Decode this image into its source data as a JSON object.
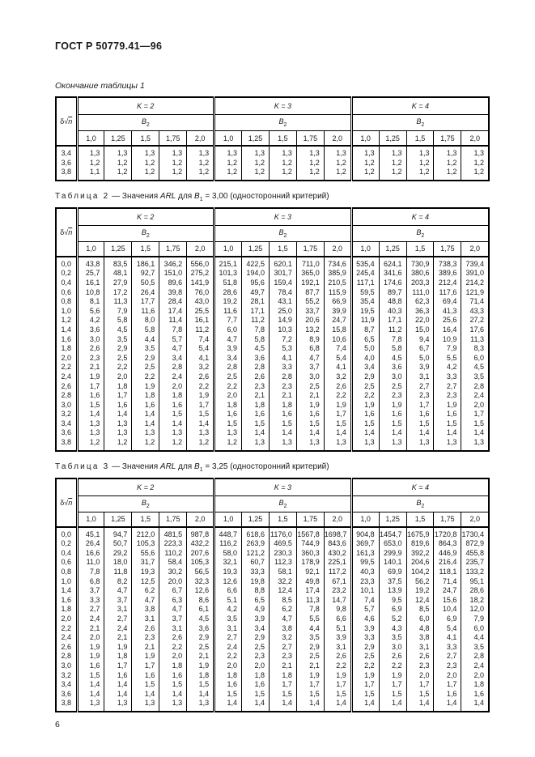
{
  "doc": {
    "header": "ГОСТ Р 50779.41—96",
    "page_number": "6"
  },
  "table_header": {
    "symbol": {
      "delta": "δ",
      "radical": "√",
      "var": "n"
    },
    "groups": [
      "K = 2",
      "K = 3",
      "K = 4"
    ],
    "group_sub_base": "B",
    "group_sub_sub": "2",
    "columns": [
      "1,0",
      "1,25",
      "1,5",
      "1,75",
      "2,0"
    ]
  },
  "tables": [
    {
      "caption_segments": [
        {
          "t": "Окончание таблицы 1",
          "cls": "ital"
        }
      ],
      "rows": [
        {
          "label": "3,4",
          "values": [
            "1,3",
            "1,3",
            "1,3",
            "1,3",
            "1,3",
            "1,3",
            "1,3",
            "1,3",
            "1,3",
            "1,3",
            "1,3",
            "1,3",
            "1,3",
            "1,3",
            "1,3"
          ]
        },
        {
          "label": "3,6",
          "values": [
            "1,2",
            "1,2",
            "1,2",
            "1,2",
            "1,2",
            "1,2",
            "1,2",
            "1,2",
            "1,2",
            "1,2",
            "1,2",
            "1,2",
            "1,2",
            "1,2",
            "1,2"
          ]
        },
        {
          "label": "3,8",
          "values": [
            "1,1",
            "1,2",
            "1,2",
            "1,2",
            "1,2",
            "1,2",
            "1,2",
            "1,2",
            "1,2",
            "1,2",
            "1,2",
            "1,2",
            "1,2",
            "1,2",
            "1,2"
          ]
        }
      ]
    },
    {
      "caption_segments": [
        {
          "t": "Таблица 2",
          "cls": "spaced"
        },
        {
          "t": " — Значения ",
          "cls": ""
        },
        {
          "t": "ARL",
          "cls": "ital"
        },
        {
          "t": " для ",
          "cls": ""
        },
        {
          "t": "B",
          "cls": "ital"
        },
        {
          "t": "1",
          "cls": "subscript"
        },
        {
          "t": " = 3,00 (односторонний критерий)",
          "cls": ""
        }
      ],
      "rows": [
        {
          "label": "0,0",
          "values": [
            "43,8",
            "83,5",
            "186,1",
            "346,2",
            "556,0",
            "215,1",
            "422,5",
            "620,1",
            "711,0",
            "734,6",
            "535,4",
            "624,1",
            "730,9",
            "738,3",
            "739,4"
          ]
        },
        {
          "label": "0,2",
          "values": [
            "25,7",
            "48,1",
            "92,7",
            "151,0",
            "275,2",
            "101,3",
            "194,0",
            "301,7",
            "365,0",
            "385,9",
            "245,4",
            "341,6",
            "380,6",
            "389,6",
            "391,0"
          ]
        },
        {
          "label": "0,4",
          "values": [
            "16,1",
            "27,9",
            "50,5",
            "89,6",
            "141,9",
            "51,8",
            "95,6",
            "159,4",
            "192,1",
            "210,5",
            "117,1",
            "174,6",
            "203,3",
            "212,4",
            "214,2"
          ]
        },
        {
          "label": "0,6",
          "values": [
            "10,8",
            "17,2",
            "26,4",
            "39,8",
            "76,0",
            "28,6",
            "49,7",
            "78,4",
            "87,7",
            "115,9",
            "59,5",
            "89,7",
            "111,0",
            "117,6",
            "121,9"
          ]
        },
        {
          "label": "0,8",
          "values": [
            "8,1",
            "11,3",
            "17,7",
            "28,4",
            "43,0",
            "19,2",
            "28,1",
            "43,1",
            "55,2",
            "66,9",
            "35,4",
            "48,8",
            "62,3",
            "69,4",
            "71,4"
          ]
        },
        {
          "label": "1,0",
          "values": [
            "5,6",
            "7,9",
            "11,6",
            "17,4",
            "25,5",
            "11,6",
            "17,1",
            "25,0",
            "33,7",
            "39,9",
            "19,5",
            "40,3",
            "36,3",
            "41,3",
            "43,3"
          ]
        },
        {
          "label": "1,2",
          "values": [
            "4,2",
            "5,8",
            "8,0",
            "11,4",
            "16,1",
            "7,7",
            "11,2",
            "14,9",
            "20,6",
            "24,7",
            "11,9",
            "17,1",
            "22,0",
            "25,6",
            "27,2"
          ]
        },
        {
          "label": "1,4",
          "values": [
            "3,6",
            "4,5",
            "5,8",
            "7,8",
            "11,2",
            "6,0",
            "7,8",
            "10,3",
            "13,2",
            "15,8",
            "8,7",
            "11,2",
            "15,0",
            "16,4",
            "17,6"
          ]
        },
        {
          "label": "1,6",
          "values": [
            "3,0",
            "3,5",
            "4,4",
            "5,7",
            "7,4",
            "4,7",
            "5,8",
            "7,2",
            "8,9",
            "10,6",
            "6,5",
            "7,8",
            "9,4",
            "10,9",
            "11,3"
          ]
        },
        {
          "label": "1,8",
          "values": [
            "2,6",
            "2,9",
            "3,5",
            "4,7",
            "5,4",
            "3,9",
            "4,5",
            "5,3",
            "6,8",
            "7,4",
            "5,0",
            "5,8",
            "6,7",
            "7,9",
            "8,3"
          ]
        },
        {
          "label": "2,0",
          "values": [
            "2,3",
            "2,5",
            "2,9",
            "3,4",
            "4,1",
            "3,4",
            "3,6",
            "4,1",
            "4,7",
            "5,4",
            "4,0",
            "4,5",
            "5,0",
            "5,5",
            "6,0"
          ]
        },
        {
          "label": "2,2",
          "values": [
            "2,1",
            "2,2",
            "2,5",
            "2,8",
            "3,2",
            "2,8",
            "2,8",
            "3,3",
            "3,7",
            "4,1",
            "3,4",
            "3,6",
            "3,9",
            "4,2",
            "4,5"
          ]
        },
        {
          "label": "2,4",
          "values": [
            "1,9",
            "2,0",
            "2,2",
            "2,4",
            "2,6",
            "2,5",
            "2,6",
            "2,8",
            "3,0",
            "3,2",
            "2,9",
            "3,0",
            "3,1",
            "3,3",
            "3,5"
          ]
        },
        {
          "label": "2,6",
          "values": [
            "1,7",
            "1,8",
            "1,9",
            "2,0",
            "2,2",
            "2,2",
            "2,3",
            "2,3",
            "2,5",
            "2,6",
            "2,5",
            "2,5",
            "2,7",
            "2,7",
            "2,8"
          ]
        },
        {
          "label": "2,8",
          "values": [
            "1,6",
            "1,7",
            "1,8",
            "1,8",
            "1,9",
            "2,0",
            "2,1",
            "2,1",
            "2,1",
            "2,2",
            "2,2",
            "2,3",
            "2,3",
            "2,3",
            "2,4"
          ]
        },
        {
          "label": "3,0",
          "values": [
            "1,5",
            "1,6",
            "1,6",
            "1,6",
            "1,7",
            "1,8",
            "1,8",
            "1,8",
            "1,9",
            "1,9",
            "1,9",
            "1,9",
            "1,7",
            "1,9",
            "2,0"
          ]
        },
        {
          "label": "3,2",
          "values": [
            "1,4",
            "1,4",
            "1,4",
            "1,5",
            "1,5",
            "1,6",
            "1,6",
            "1,6",
            "1,6",
            "1,7",
            "1,6",
            "1,6",
            "1,6",
            "1,6",
            "1,7"
          ]
        },
        {
          "label": "3,4",
          "values": [
            "1,3",
            "1,3",
            "1,4",
            "1,4",
            "1,4",
            "1,5",
            "1,5",
            "1,5",
            "1,5",
            "1,5",
            "1,5",
            "1,5",
            "1,5",
            "1,5",
            "1,5"
          ]
        },
        {
          "label": "3,6",
          "values": [
            "1,3",
            "1,3",
            "1,3",
            "1,3",
            "1,3",
            "1,3",
            "1,4",
            "1,4",
            "1,4",
            "1,4",
            "1,4",
            "1,4",
            "1,4",
            "1,4",
            "1,4"
          ]
        },
        {
          "label": "3,8",
          "values": [
            "1,2",
            "1,2",
            "1,2",
            "1,2",
            "1,2",
            "1,2",
            "1,3",
            "1,3",
            "1,3",
            "1,3",
            "1,3",
            "1,3",
            "1,3",
            "1,3",
            "1,3"
          ]
        }
      ]
    },
    {
      "caption_segments": [
        {
          "t": "Таблица 3",
          "cls": "spaced"
        },
        {
          "t": " — Значения ",
          "cls": ""
        },
        {
          "t": "ARL",
          "cls": "ital"
        },
        {
          "t": " для ",
          "cls": ""
        },
        {
          "t": "B",
          "cls": "ital"
        },
        {
          "t": "1",
          "cls": "subscript"
        },
        {
          "t": " = 3,25 (односторонний критерий)",
          "cls": ""
        }
      ],
      "rows": [
        {
          "label": "0,0",
          "values": [
            "45,1",
            "94,7",
            "212,0",
            "481,5",
            "987,8",
            "448,7",
            "618,6",
            "1176,0",
            "1567,8",
            "1698,7",
            "904,8",
            "1454,7",
            "1675,9",
            "1720,8",
            "1730,4"
          ]
        },
        {
          "label": "0,2",
          "values": [
            "26,4",
            "50,7",
            "105,3",
            "223,3",
            "432,2",
            "116,2",
            "263,9",
            "469,5",
            "744,9",
            "843,6",
            "369,7",
            "653,0",
            "819,6",
            "864,3",
            "872,9"
          ]
        },
        {
          "label": "0,4",
          "values": [
            "16,6",
            "29,2",
            "55,6",
            "110,2",
            "207,6",
            "58,0",
            "121,2",
            "230,3",
            "360,3",
            "430,2",
            "161,3",
            "299,9",
            "392,2",
            "446,9",
            "455,8"
          ]
        },
        {
          "label": "0,6",
          "values": [
            "11,0",
            "18,0",
            "31,7",
            "58,4",
            "105,3",
            "32,1",
            "60,7",
            "112,3",
            "178,9",
            "225,1",
            "99,5",
            "140,1",
            "204,6",
            "216,4",
            "235,7"
          ]
        },
        {
          "label": "0,8",
          "values": [
            "7,8",
            "11,8",
            "19,3",
            "30,2",
            "56,5",
            "19,3",
            "33,3",
            "58,1",
            "92,1",
            "117,2",
            "40,3",
            "69,9",
            "104,2",
            "118,1",
            "133,2"
          ]
        },
        {
          "label": "1,0",
          "values": [
            "6,8",
            "8,2",
            "12,5",
            "20,0",
            "32,3",
            "12,6",
            "19,8",
            "32,2",
            "49,8",
            "67,1",
            "23,3",
            "37,5",
            "56,2",
            "71,4",
            "95,1"
          ]
        },
        {
          "label": "1,4",
          "values": [
            "3,7",
            "4,7",
            "6,2",
            "6,7",
            "12,6",
            "6,6",
            "8,8",
            "12,4",
            "17,4",
            "23,2",
            "10,1",
            "13,9",
            "19,2",
            "24,7",
            "28,6"
          ]
        },
        {
          "label": "1,6",
          "values": [
            "3,3",
            "3,7",
            "4,7",
            "6,3",
            "8,6",
            "5,1",
            "6,5",
            "8,5",
            "11,3",
            "14,7",
            "7,4",
            "9,5",
            "12,4",
            "15,6",
            "18,2"
          ]
        },
        {
          "label": "1,8",
          "values": [
            "2,7",
            "3,1",
            "3,8",
            "4,7",
            "6,1",
            "4,2",
            "4,9",
            "6,2",
            "7,8",
            "9,8",
            "5,7",
            "6,9",
            "8,5",
            "10,4",
            "12,0"
          ]
        },
        {
          "label": "2,0",
          "values": [
            "2,4",
            "2,7",
            "3,1",
            "3,7",
            "4,5",
            "3,5",
            "3,9",
            "4,7",
            "5,5",
            "6,6",
            "4,6",
            "5,2",
            "6,0",
            "6,9",
            "7,9"
          ]
        },
        {
          "label": "2,2",
          "values": [
            "2,1",
            "2,4",
            "2,6",
            "3,1",
            "3,6",
            "3,1",
            "3,4",
            "3,8",
            "4,4",
            "5,1",
            "3,9",
            "4,3",
            "4,8",
            "5,4",
            "6,0"
          ]
        },
        {
          "label": "2,4",
          "values": [
            "2,0",
            "2,1",
            "2,3",
            "2,6",
            "2,9",
            "2,7",
            "2,9",
            "3,2",
            "3,5",
            "3,9",
            "3,3",
            "3,5",
            "3,8",
            "4,1",
            "4,4"
          ]
        },
        {
          "label": "2,6",
          "values": [
            "1,9",
            "1,9",
            "2,1",
            "2,2",
            "2,5",
            "2,4",
            "2,5",
            "2,7",
            "2,9",
            "3,1",
            "2,9",
            "3,0",
            "3,1",
            "3,3",
            "3,5"
          ]
        },
        {
          "label": "2,8",
          "values": [
            "1,9",
            "1,8",
            "1,9",
            "2,0",
            "2,1",
            "2,2",
            "2,3",
            "2,3",
            "2,5",
            "2,6",
            "2,5",
            "2,6",
            "2,6",
            "2,7",
            "2,8"
          ]
        },
        {
          "label": "3,0",
          "values": [
            "1,6",
            "1,7",
            "1,7",
            "1,8",
            "1,9",
            "2,0",
            "2,0",
            "2,1",
            "2,1",
            "2,2",
            "2,2",
            "2,2",
            "2,3",
            "2,3",
            "2,4"
          ]
        },
        {
          "label": "3,2",
          "values": [
            "1,5",
            "1,6",
            "1,6",
            "1,6",
            "1,8",
            "1,8",
            "1,8",
            "1,8",
            "1,9",
            "1,9",
            "1,9",
            "1,9",
            "2,0",
            "2,0",
            "2,0"
          ]
        },
        {
          "label": "3,4",
          "values": [
            "1,4",
            "1,4",
            "1,5",
            "1,5",
            "1,5",
            "1,6",
            "1,6",
            "1,7",
            "1,7",
            "1,7",
            "1,7",
            "1,7",
            "1,7",
            "1,7",
            "1,8"
          ]
        },
        {
          "label": "3,6",
          "values": [
            "1,4",
            "1,4",
            "1,4",
            "1,4",
            "1,4",
            "1,5",
            "1,5",
            "1,5",
            "1,5",
            "1,5",
            "1,5",
            "1,5",
            "1,5",
            "1,6",
            "1,6"
          ]
        },
        {
          "label": "3,8",
          "values": [
            "1,3",
            "1,3",
            "1,3",
            "1,3",
            "1,3",
            "1,4",
            "1,4",
            "1,4",
            "1,4",
            "1,4",
            "1,4",
            "1,4",
            "1,4",
            "1,4",
            "1,4"
          ]
        }
      ]
    }
  ]
}
